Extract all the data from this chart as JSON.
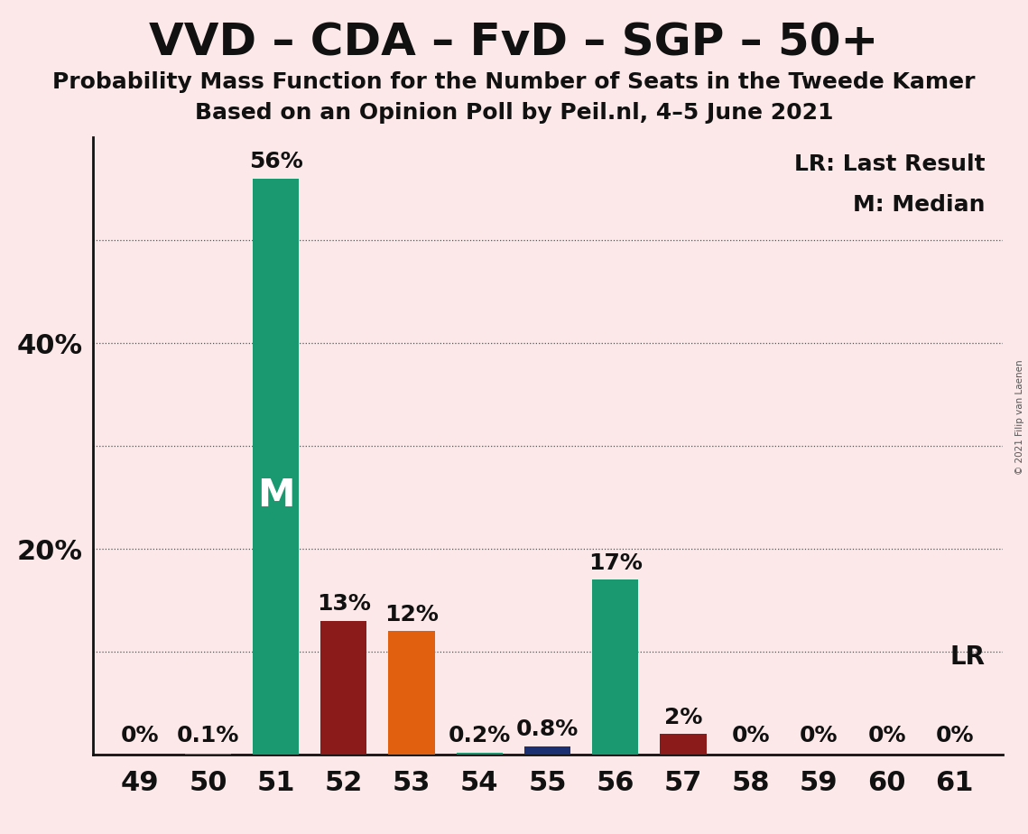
{
  "title": "VVD – CDA – FvD – SGP – 50+",
  "subtitle1": "Probability Mass Function for the Number of Seats in the Tweede Kamer",
  "subtitle2": "Based on an Opinion Poll by Peil.nl, 4–5 June 2021",
  "copyright": "© 2021 Filip van Laenen",
  "legend_lr": "LR: Last Result",
  "legend_m": "M: Median",
  "background_color": "#fce8e8",
  "categories": [
    49,
    50,
    51,
    52,
    53,
    54,
    55,
    56,
    57,
    58,
    59,
    60,
    61
  ],
  "values": [
    0.0,
    0.1,
    56.0,
    13.0,
    12.0,
    0.2,
    0.8,
    17.0,
    2.0,
    0.0,
    0.0,
    0.0,
    0.0
  ],
  "labels": [
    "0%",
    "0.1%",
    "56%",
    "13%",
    "12%",
    "0.2%",
    "0.8%",
    "17%",
    "2%",
    "0%",
    "0%",
    "0%",
    "0%"
  ],
  "colors": [
    "#1a9870",
    "#1a9870",
    "#1a9870",
    "#8b1a1a",
    "#e06010",
    "#1a9870",
    "#1a3070",
    "#1a9870",
    "#8b1a1a",
    "#1a9870",
    "#1a9870",
    "#1a9870",
    "#1a9870"
  ],
  "median_bar_seat": 51,
  "ylim": [
    0,
    60
  ],
  "grid_ticks": [
    10,
    20,
    30,
    40,
    50
  ],
  "ytick_positions": [
    20,
    40
  ],
  "ytick_labels": [
    "20%",
    "40%"
  ],
  "title_fontsize": 36,
  "subtitle_fontsize": 18,
  "tick_fontsize": 22,
  "label_fontsize": 18,
  "median_label_fontsize": 30,
  "lr_label_fontsize": 20,
  "legend_fontsize": 18
}
